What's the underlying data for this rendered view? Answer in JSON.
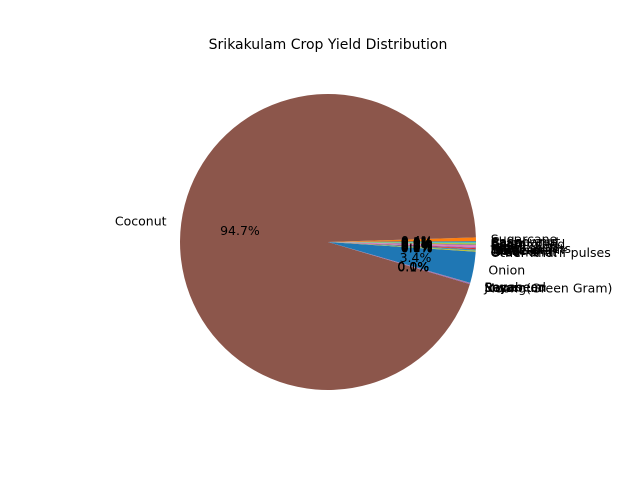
{
  "chart_data": {
    "type": "pie",
    "title": "Srikakulam Crop Yield Distribution",
    "start_angle_deg": 0,
    "direction": "counterclockwise",
    "slices": [
      {
        "label": "Cashewnut",
        "value": 0.1,
        "pct_label": "0.1%",
        "color": "#1f77b4"
      },
      {
        "label": "Sugarcane",
        "value": 0.4,
        "pct_label": "0.4%",
        "color": "#ff7f0e"
      },
      {
        "label": "Coconut",
        "value": 94.7,
        "pct_label": "94.7%",
        "color": "#8c564b"
      },
      {
        "label": "Moong(Green Gram)",
        "value": 0.1,
        "pct_label": "0.1%",
        "color": "#9467bd"
      },
      {
        "label": "Sesamum",
        "value": 0.01,
        "pct_label": "0.0%",
        "color": "#ff7f0e"
      },
      {
        "label": "Jowar",
        "value": 0.01,
        "pct_label": "0.0%",
        "color": "#2ca02c"
      },
      {
        "label": "Soyabean",
        "value": 0.01,
        "pct_label": "0.0%",
        "color": "#d62728"
      },
      {
        "label": "Rapeseed",
        "value": 0.01,
        "pct_label": "0.0%",
        "color": "#e377c2"
      },
      {
        "label": "Onion",
        "value": 3.4,
        "pct_label": "3.4%",
        "color": "#1f77b4"
      },
      {
        "label": "Other Kharif pulses",
        "value": 0.02,
        "pct_label": "0.0%",
        "color": "#7f7f7f"
      },
      {
        "label": "Groundnut",
        "value": 0.1,
        "pct_label": "0.1%",
        "color": "#bcbd22"
      },
      {
        "label": "Urad",
        "value": 0.03,
        "pct_label": "0.0%",
        "color": "#17becf"
      },
      {
        "label": "Maize",
        "value": 0.1,
        "pct_label": "0.1%",
        "color": "#1f77b4"
      },
      {
        "label": "Sunflower",
        "value": 0.02,
        "pct_label": "0.0%",
        "color": "#ff7f0e"
      },
      {
        "label": "Tobacco",
        "value": 0.02,
        "pct_label": "0.0%",
        "color": "#2ca02c"
      },
      {
        "label": "Horse-gram",
        "value": 0.1,
        "pct_label": "0.1%",
        "color": "#d62728"
      },
      {
        "label": "Small millets",
        "value": 0.1,
        "pct_label": "0.1%",
        "color": "#9467bd"
      },
      {
        "label": "Niger seed",
        "value": 0.02,
        "pct_label": "0.0%",
        "color": "#8c564b"
      },
      {
        "label": "Rice",
        "value": 0.2,
        "pct_label": "0.2%",
        "color": "#e377c2"
      },
      {
        "label": "Ragi",
        "value": 0.1,
        "pct_label": "0.1%",
        "color": "#7f7f7f"
      },
      {
        "label": "Castor seed",
        "value": 0.1,
        "pct_label": "0.1%",
        "color": "#bcbd22"
      },
      {
        "label": "Gram",
        "value": 0.1,
        "pct_label": "0.1%",
        "color": "#17becf"
      },
      {
        "label": "Bajra",
        "value": 0.02,
        "pct_label": "0.0%",
        "color": "#98df8a"
      },
      {
        "label": "Sannhamp",
        "value": 0.02,
        "pct_label": "0.0%",
        "color": "#2ca02c"
      }
    ]
  }
}
